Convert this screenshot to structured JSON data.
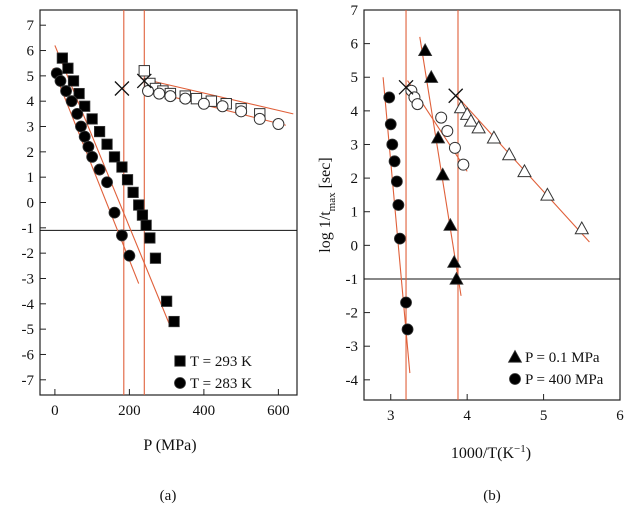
{
  "chart_data": [
    {
      "type": "scatter",
      "panel_label": "(a)",
      "xlabel": "P (MPa)",
      "ylabel": "",
      "xlim": [
        -40,
        650
      ],
      "ylim": [
        -7.6,
        7.6
      ],
      "x_ticks": [
        0,
        200,
        400,
        600
      ],
      "y_ticks": [
        7,
        6,
        5,
        4,
        3,
        2,
        1,
        0,
        -1,
        -2,
        -3,
        -4,
        -5,
        -6,
        -7
      ],
      "hline_y": -1.1,
      "vlines_x": [
        185,
        240
      ],
      "cross_points": [
        [
          180,
          4.5
        ],
        [
          240,
          4.8
        ]
      ],
      "legend": {
        "position": "bottom-right",
        "entries": [
          {
            "marker": "filled-square",
            "label": "T = 293 K"
          },
          {
            "marker": "filled-circle",
            "label": "T = 283 K"
          }
        ]
      },
      "series": [
        {
          "marker": "filled-square",
          "points": [
            [
              20,
              5.7
            ],
            [
              35,
              5.3
            ],
            [
              50,
              4.8
            ],
            [
              65,
              4.3
            ],
            [
              80,
              3.8
            ],
            [
              100,
              3.3
            ],
            [
              120,
              2.8
            ],
            [
              140,
              2.3
            ],
            [
              160,
              1.8
            ],
            [
              180,
              1.4
            ],
            [
              195,
              0.9
            ],
            [
              210,
              0.4
            ],
            [
              225,
              -0.1
            ],
            [
              235,
              -0.5
            ],
            [
              245,
              -0.9
            ],
            [
              255,
              -1.4
            ],
            [
              270,
              -2.2
            ],
            [
              300,
              -3.9
            ],
            [
              320,
              -4.7
            ]
          ]
        },
        {
          "marker": "filled-circle",
          "points": [
            [
              5,
              5.1
            ],
            [
              15,
              4.8
            ],
            [
              30,
              4.4
            ],
            [
              45,
              4.0
            ],
            [
              60,
              3.5
            ],
            [
              70,
              3.0
            ],
            [
              80,
              2.6
            ],
            [
              90,
              2.2
            ],
            [
              100,
              1.8
            ],
            [
              120,
              1.3
            ],
            [
              140,
              0.8
            ],
            [
              160,
              -0.4
            ],
            [
              180,
              -1.3
            ],
            [
              200,
              -2.1
            ]
          ]
        },
        {
          "marker": "open-square",
          "points": [
            [
              240,
              5.2
            ],
            [
              255,
              4.7
            ],
            [
              270,
              4.5
            ],
            [
              290,
              4.4
            ],
            [
              310,
              4.3
            ],
            [
              350,
              4.2
            ],
            [
              380,
              4.1
            ],
            [
              420,
              4.0
            ],
            [
              460,
              3.9
            ],
            [
              500,
              3.7
            ],
            [
              550,
              3.5
            ]
          ]
        },
        {
          "marker": "open-circle",
          "points": [
            [
              250,
              4.4
            ],
            [
              280,
              4.3
            ],
            [
              310,
              4.2
            ],
            [
              350,
              4.1
            ],
            [
              400,
              3.9
            ],
            [
              450,
              3.8
            ],
            [
              500,
              3.6
            ],
            [
              550,
              3.3
            ],
            [
              600,
              3.1
            ]
          ]
        }
      ],
      "fit_lines": [
        [
          [
            0,
            6.2
          ],
          [
            310,
            -4.9
          ]
        ],
        [
          [
            -5,
            5.3
          ],
          [
            225,
            -3.2
          ]
        ],
        [
          [
            230,
            4.9
          ],
          [
            640,
            3.5
          ]
        ],
        [
          [
            240,
            4.45
          ],
          [
            620,
            3.05
          ]
        ]
      ]
    },
    {
      "type": "scatter",
      "panel_label": "(b)",
      "xlabel": "1000/T(K",
      "xlabel_sup": "−1",
      "xlabel_end": ")",
      "ylabel_main": "log 1/t",
      "ylabel_sub": "max",
      "ylabel_unit": "[sec]",
      "xlim": [
        2.65,
        6.0
      ],
      "ylim": [
        -4.6,
        7.0
      ],
      "x_ticks": [
        3,
        4,
        5,
        6
      ],
      "y_ticks": [
        7,
        6,
        5,
        4,
        3,
        2,
        1,
        0,
        -1,
        -2,
        -3,
        -4
      ],
      "hline_y": -1.0,
      "vlines_x": [
        3.2,
        3.88
      ],
      "cross_points": [
        [
          3.2,
          4.7
        ],
        [
          3.85,
          4.45
        ]
      ],
      "legend": {
        "position": "bottom-right",
        "entries": [
          {
            "marker": "filled-triangle",
            "label": "P = 0.1 MPa"
          },
          {
            "marker": "filled-circle",
            "label": "P = 400 MPa"
          }
        ]
      },
      "series": [
        {
          "marker": "filled-triangle",
          "points": [
            [
              3.45,
              5.8
            ],
            [
              3.53,
              5.0
            ],
            [
              3.62,
              3.2
            ],
            [
              3.68,
              2.1
            ],
            [
              3.78,
              0.6
            ],
            [
              3.83,
              -0.5
            ],
            [
              3.86,
              -1.0
            ]
          ]
        },
        {
          "marker": "filled-circle",
          "points": [
            [
              2.98,
              4.4
            ],
            [
              3.0,
              3.6
            ],
            [
              3.02,
              3.0
            ],
            [
              3.05,
              2.5
            ],
            [
              3.08,
              1.9
            ],
            [
              3.1,
              1.2
            ],
            [
              3.12,
              0.2
            ],
            [
              3.2,
              -1.7
            ],
            [
              3.22,
              -2.5
            ]
          ]
        },
        {
          "marker": "open-circle",
          "points": [
            [
              3.27,
              4.6
            ],
            [
              3.31,
              4.4
            ],
            [
              3.35,
              4.2
            ],
            [
              3.66,
              3.8
            ],
            [
              3.74,
              3.4
            ],
            [
              3.84,
              2.9
            ],
            [
              3.95,
              2.4
            ]
          ]
        },
        {
          "marker": "open-triangle",
          "points": [
            [
              3.92,
              4.1
            ],
            [
              4.0,
              3.9
            ],
            [
              4.05,
              3.7
            ],
            [
              4.15,
              3.5
            ],
            [
              4.35,
              3.2
            ],
            [
              4.55,
              2.7
            ],
            [
              4.75,
              2.2
            ],
            [
              5.05,
              1.5
            ],
            [
              5.5,
              0.5
            ]
          ]
        }
      ],
      "fit_lines": [
        [
          [
            2.9,
            5.0
          ],
          [
            3.25,
            -3.8
          ]
        ],
        [
          [
            3.38,
            6.2
          ],
          [
            3.92,
            -1.5
          ]
        ],
        [
          [
            3.22,
            4.9
          ],
          [
            4.0,
            2.2
          ]
        ],
        [
          [
            3.88,
            4.4
          ],
          [
            5.6,
            0.1
          ]
        ]
      ]
    }
  ]
}
